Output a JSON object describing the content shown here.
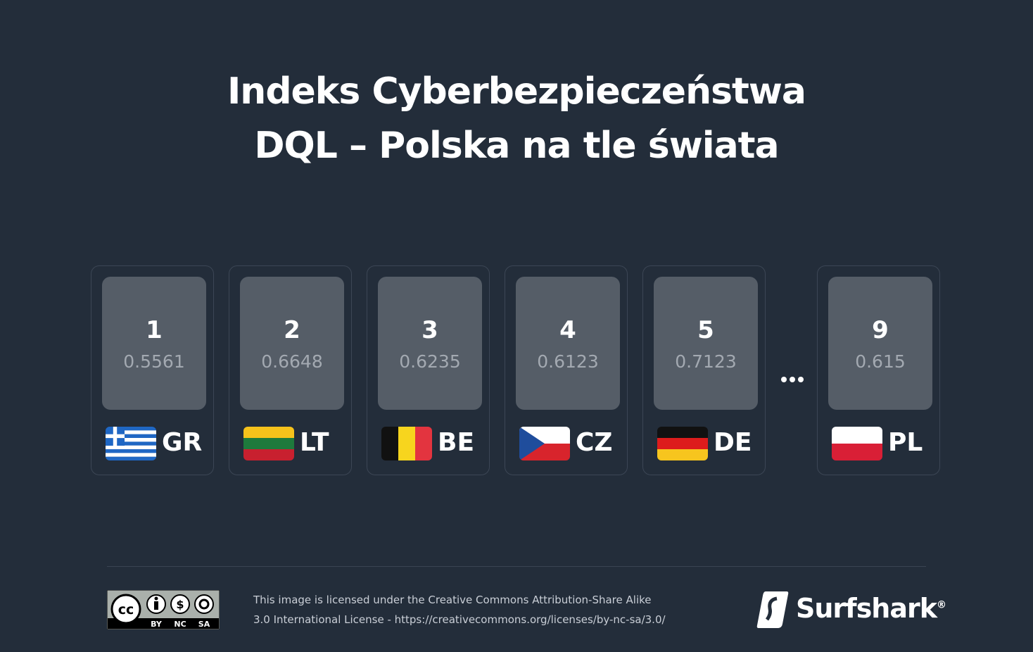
{
  "header": {
    "title_lines": [
      "Indeks Cyberbezpieczeństwa",
      "DQL – Polska na tle świata"
    ]
  },
  "cards": [
    {
      "rank": 1,
      "score": 0.5561,
      "code": "GR"
    },
    {
      "rank": 2,
      "score": 0.6648,
      "code": "LT"
    },
    {
      "rank": 3,
      "score": 0.6235,
      "code": "BE"
    },
    {
      "rank": 4,
      "score": 0.6123,
      "code": "CZ"
    },
    {
      "rank": 5,
      "score": 0.7123,
      "code": "DE"
    },
    {
      "rank": 9,
      "score": 0.615,
      "code": "PL"
    }
  ],
  "footer": {
    "cc_labels": [
      "BY",
      "NC",
      "SA"
    ],
    "license_lines": [
      "This image is licensed under the Creative Commons Attribution-Share Alike",
      "3.0 International License - https://creativecommons.org/licenses/by-nc-sa/3.0/"
    ],
    "brand": "Surfshark",
    "brand_mark": "®"
  }
}
